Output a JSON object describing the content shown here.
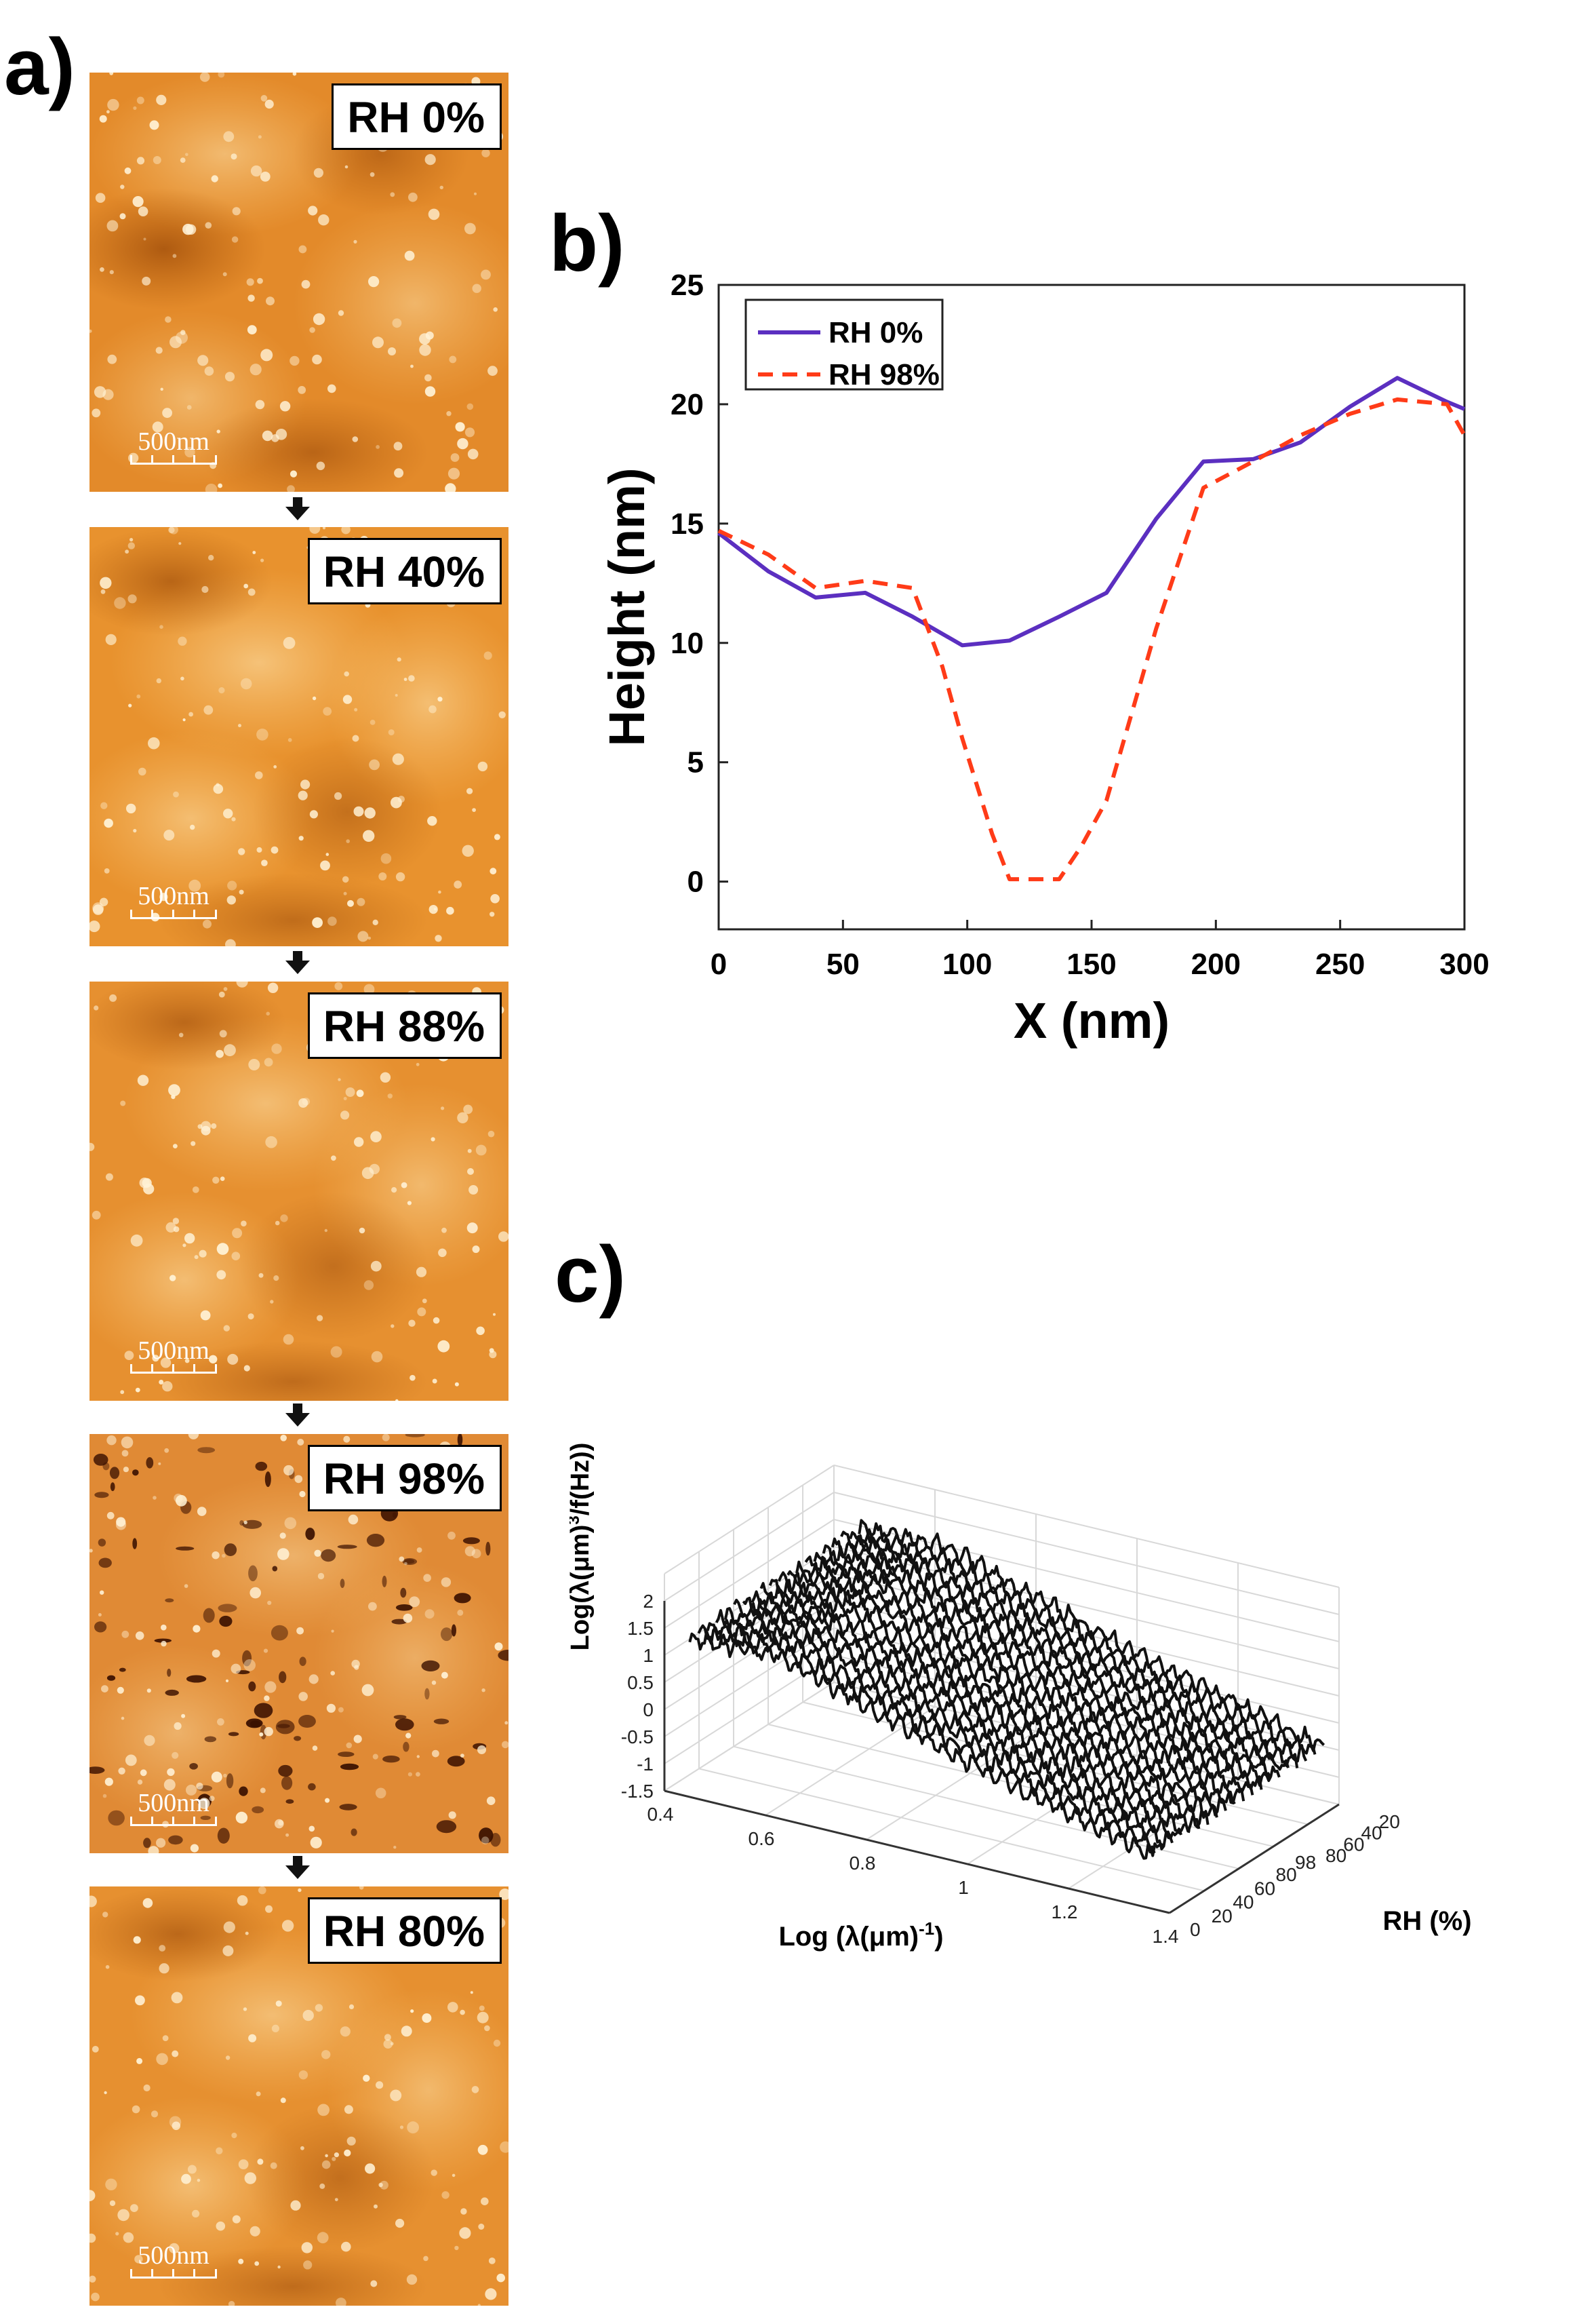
{
  "panels": {
    "a": "a)",
    "b": "b)",
    "c": "c)"
  },
  "afm_images": [
    {
      "label": "RH 0%",
      "scale": "500nm"
    },
    {
      "label": "RH 40%",
      "scale": "500nm"
    },
    {
      "label": "RH 88%",
      "scale": "500nm"
    },
    {
      "label": "RH 98%",
      "scale": "500nm"
    },
    {
      "label": "RH 80%",
      "scale": "500nm"
    }
  ],
  "chart_data": [
    {
      "type": "line",
      "title": "",
      "xlabel": "X (nm)",
      "ylabel": "Height (nm)",
      "xlim": [
        0,
        300
      ],
      "ylim": [
        -2,
        25
      ],
      "xticks": [
        0,
        50,
        100,
        150,
        200,
        250,
        300
      ],
      "yticks": [
        0,
        5,
        10,
        15,
        20,
        25
      ],
      "legend_position": "top-left",
      "grid": false,
      "series": [
        {
          "name": "RH 0%",
          "color": "#5b2fc0",
          "style": "solid",
          "x": [
            0,
            20,
            39,
            59,
            78,
            98,
            117,
            137,
            156,
            176,
            195,
            215,
            234,
            254,
            273,
            293,
            300
          ],
          "y": [
            14.6,
            13.0,
            11.9,
            12.1,
            11.1,
            9.9,
            10.1,
            11.1,
            12.1,
            15.2,
            17.6,
            17.7,
            18.4,
            19.9,
            21.1,
            20.1,
            19.8
          ]
        },
        {
          "name": "RH 98%",
          "color": "#ff3b18",
          "style": "dashed",
          "x": [
            0,
            20,
            39,
            59,
            78,
            90,
            98,
            110,
            117,
            137,
            146,
            156,
            166,
            176,
            195,
            215,
            234,
            254,
            273,
            293,
            300
          ],
          "y": [
            14.7,
            13.7,
            12.3,
            12.6,
            12.3,
            9.0,
            6.0,
            2.0,
            0.1,
            0.1,
            1.5,
            3.4,
            7.0,
            10.6,
            16.5,
            17.6,
            18.7,
            19.6,
            20.2,
            20.0,
            18.7
          ]
        }
      ]
    },
    {
      "type": "line",
      "subtype": "3d-waterfall",
      "title": "",
      "xlabel": "Log (λ(μm)",
      "xlabel_sup": "-1",
      "xlabel_close": ")",
      "ylabel": "RH (%)",
      "zlabel": "Log(λ(μm)",
      "zlabel_sup": "3",
      "zlabel_tail": "/f(Hz))",
      "xlim": [
        0.4,
        1.4
      ],
      "xticks": [
        0.4,
        0.6,
        0.8,
        1,
        1.2,
        1.4
      ],
      "y_ticks_front": [
        0,
        20,
        40,
        60,
        80,
        98
      ],
      "y_ticks_back": [
        80,
        60,
        40,
        20
      ],
      "zlim": [
        -1.5,
        2
      ],
      "zticks": [
        -1.5,
        -1,
        -0.5,
        0,
        0.5,
        1,
        1.5,
        2
      ],
      "series_count": 20,
      "curve_model": {
        "x_start": 0.45,
        "x_end": 1.37,
        "plateau_z": 1.5,
        "drop_x": 0.62,
        "slope": -3.1,
        "end_z": -1.3
      }
    }
  ]
}
